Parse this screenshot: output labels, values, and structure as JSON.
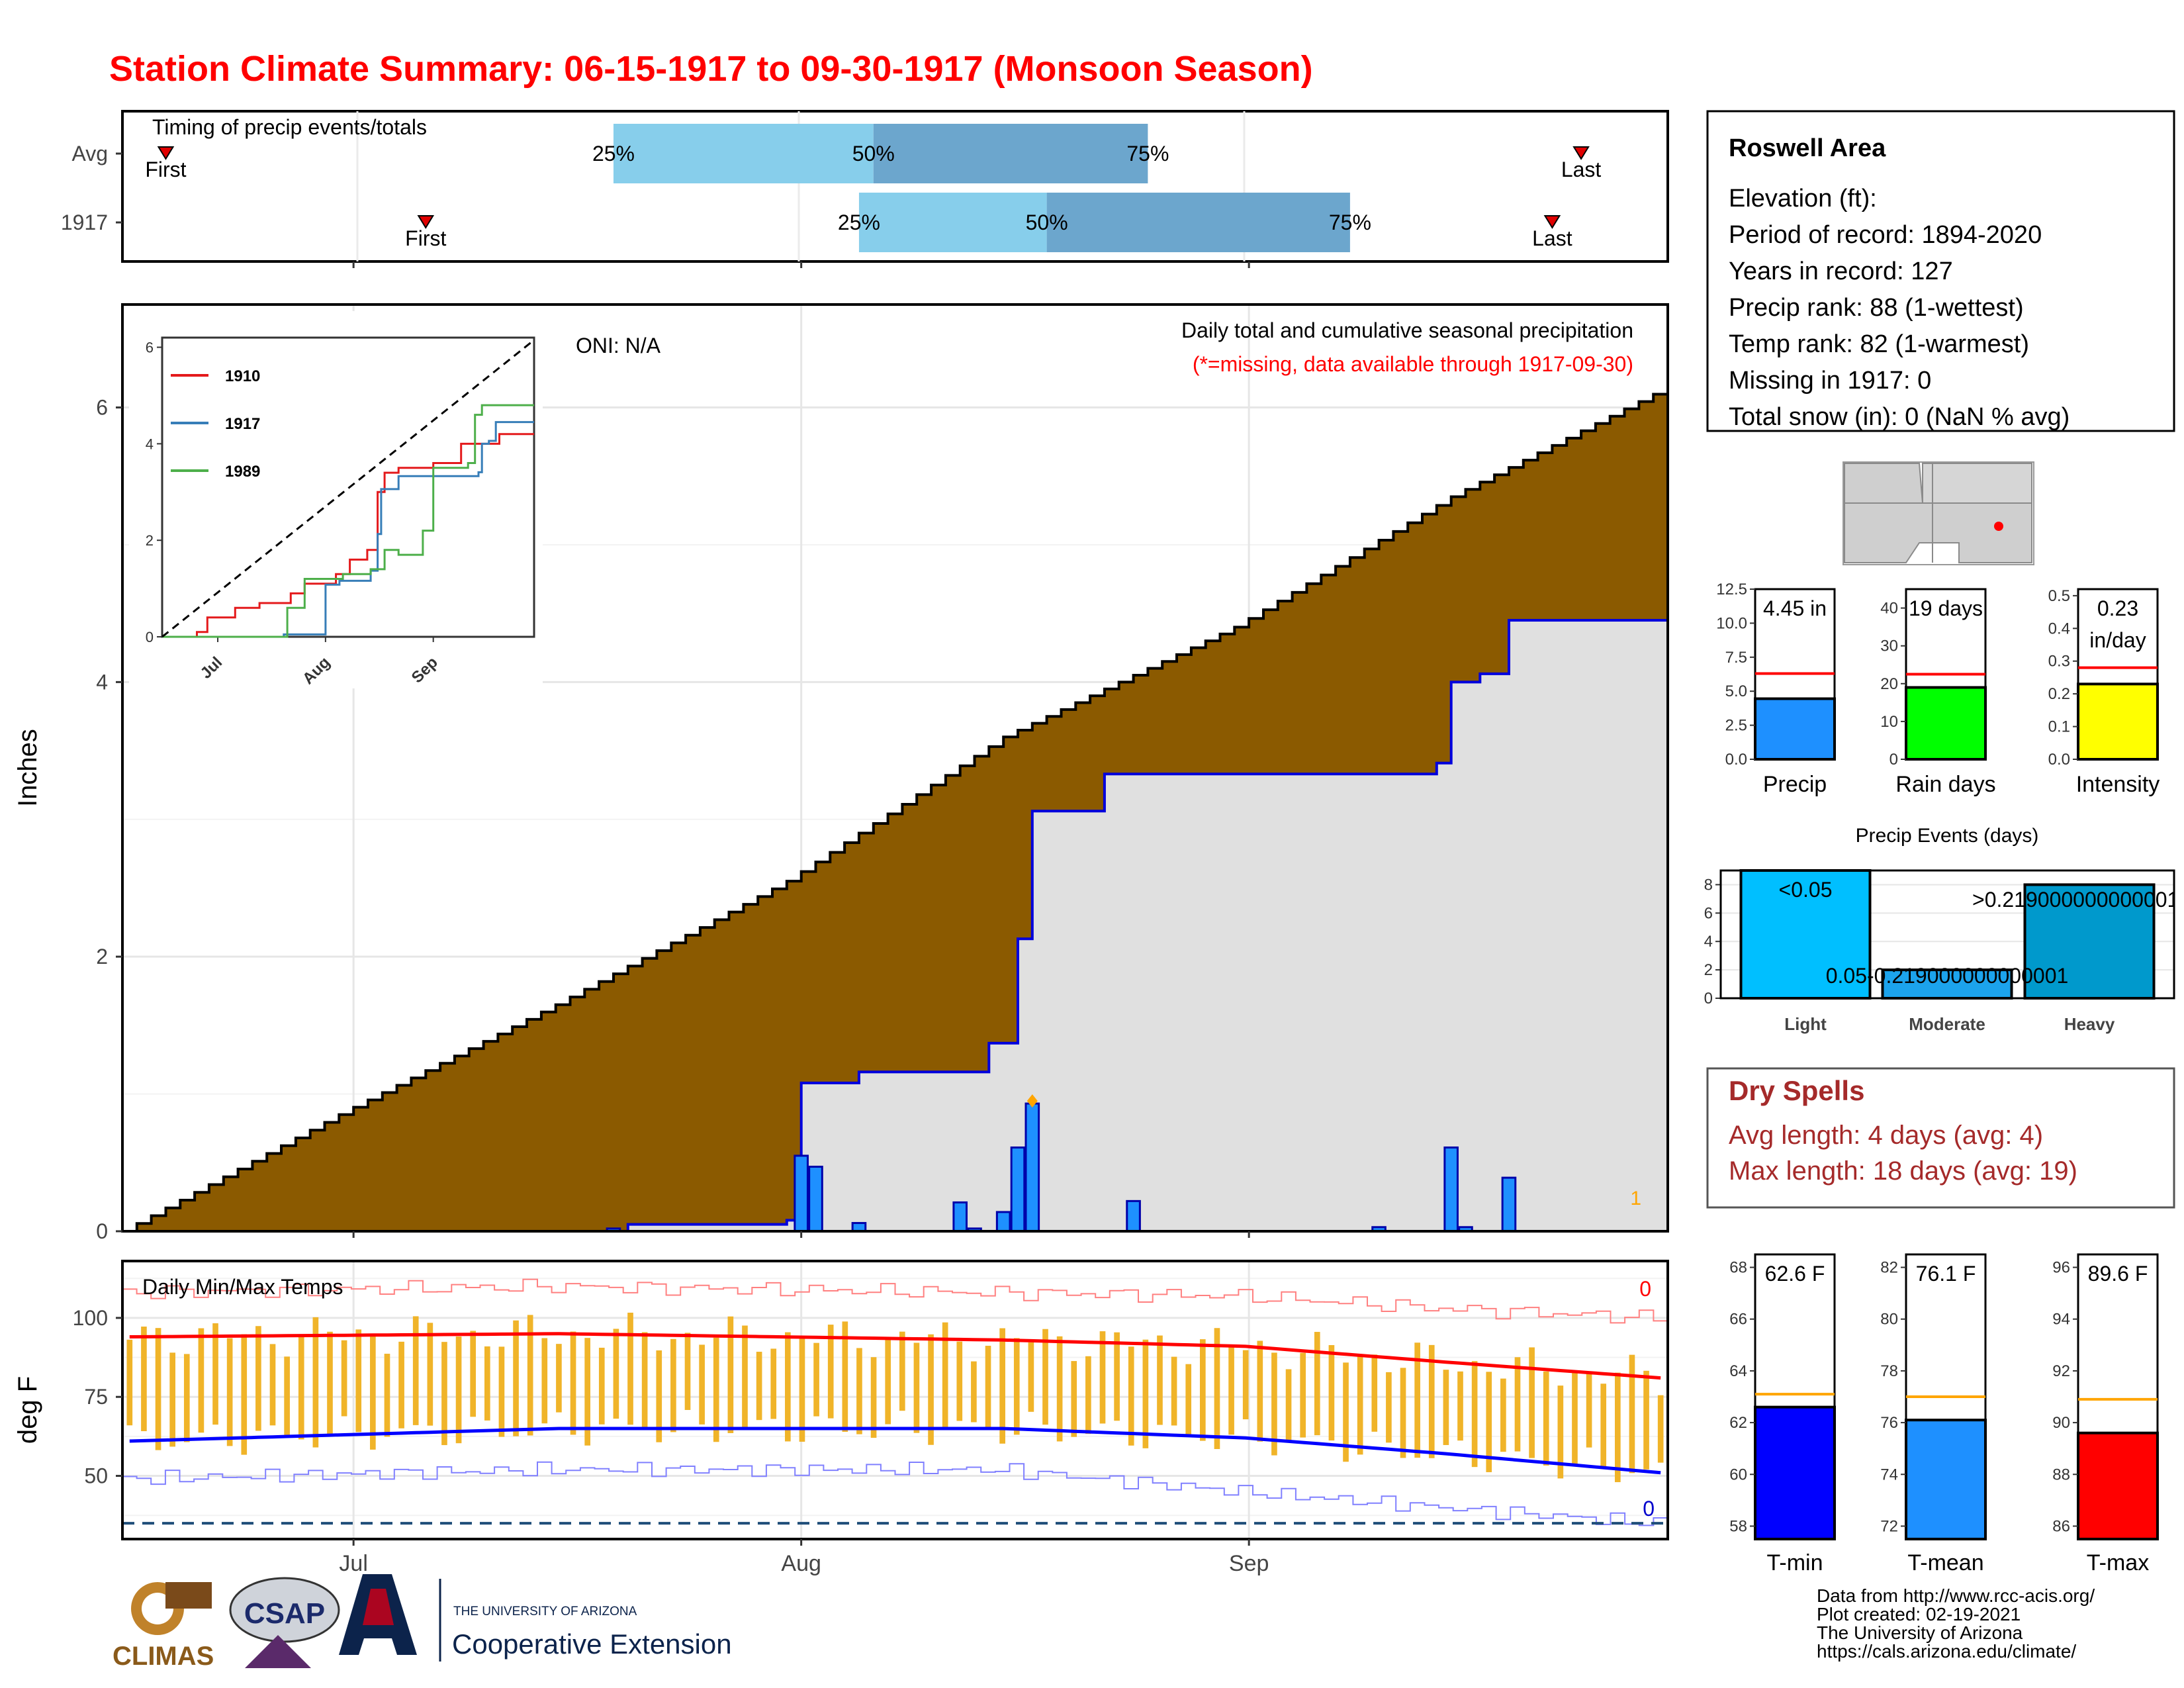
{
  "title": "Station Climate Summary: 06-15-1917 to 09-30-1917 (Monsoon Season)",
  "colors": {
    "title": "#ff0000",
    "cumulative_avg_fill": "#8b5a00",
    "cumulative_year_fill": "#e0e0e0",
    "daily_bar": "#1e90ff",
    "quartile_light": "#87ceeb",
    "quartile_dark": "#6ca6cd",
    "tmax_line": "#ff0000",
    "tmin_line": "#0000ff",
    "temp_range_bar": "#f0b429",
    "avg_ref_line": "#ff0000",
    "temp_ref_line": "#ffa500",
    "dry_spells_text": "#a52a2a"
  },
  "timing": {
    "label": "Timing of precip events/totals",
    "rows": [
      {
        "name": "Avg",
        "first_label": "First",
        "last_label": "Last",
        "first_date": "06-18",
        "last_date": "09-24",
        "q25": "07-19",
        "q50": "08-06",
        "q75": "08-25"
      },
      {
        "name": "1917",
        "first_label": "First",
        "last_label": "Last",
        "first_date": "07-06",
        "last_date": "09-22",
        "q25": "08-05",
        "q50": "08-18",
        "q75": "09-08"
      }
    ],
    "q25_label": "25%",
    "q50_label": "50%",
    "q75_label": "75%"
  },
  "main": {
    "ylabel": "Inches",
    "oni": "ONI: N/A",
    "subtitle": "Daily total and cumulative seasonal precipitation",
    "note": "(*=missing, data available through 1917-09-30)",
    "corner_count": "1",
    "x_ticks": [
      "Jul",
      "Aug",
      "Sep"
    ]
  },
  "inset": {
    "legend": [
      {
        "name": "1910",
        "color": "#e41a1c"
      },
      {
        "name": "1917",
        "color": "#377eb8"
      },
      {
        "name": "1989",
        "color": "#4daf4a"
      }
    ],
    "x_ticks": [
      "Jul",
      "Aug",
      "Sep"
    ],
    "y_ticks": [
      "0",
      "2",
      "4",
      "6"
    ]
  },
  "temps": {
    "ylabel": "deg F",
    "label": "Daily Min/Max Temps",
    "missing_max": "0",
    "missing_min": "0",
    "y_ticks": [
      "50",
      "75",
      "100"
    ],
    "x_ticks": [
      "Jul",
      "Aug",
      "Sep"
    ]
  },
  "station": {
    "name": "Roswell Area",
    "lines": [
      "Elevation (ft):",
      "Period of record: 1894-2020",
      "Years in record: 127",
      "Precip rank: 88 (1-wettest)",
      "Temp rank: 82 (1-warmest)",
      "Missing in 1917: 0",
      "Total snow (in): 0 (NaN % avg)"
    ]
  },
  "mini_bars": [
    {
      "label": "Precip",
      "value_text": "4.45 in",
      "value": 4.45,
      "avg": 6.3,
      "max": 12.5,
      "ticks": [
        "0.0",
        "2.5",
        "5.0",
        "7.5",
        "10.0",
        "12.5"
      ],
      "color": "#1e90ff"
    },
    {
      "label": "Rain days",
      "value_text": "19 days",
      "value": 19,
      "avg": 22.5,
      "max": 45,
      "ticks": [
        "0",
        "10",
        "20",
        "30",
        "40"
      ],
      "color": "#00ff00"
    },
    {
      "label": "Intensity",
      "value_text": "0.23",
      "value_text2": "in/day",
      "value": 0.23,
      "avg": 0.28,
      "max": 0.52,
      "ticks": [
        "0.0",
        "0.1",
        "0.2",
        "0.3",
        "0.4",
        "0.5"
      ],
      "color": "#ffff00"
    }
  ],
  "events": {
    "title": "Precip Events (days)",
    "y_ticks": [
      "0",
      "2",
      "4",
      "6",
      "8"
    ],
    "bars": [
      {
        "label": "Light",
        "value": 9,
        "text": "<0.05",
        "color": "#00bfff"
      },
      {
        "label": "Moderate",
        "value": 2,
        "text": "0.05-0.219000000000001",
        "color": "#1ca3ec"
      },
      {
        "label": "Heavy",
        "value": 8,
        "text": ">0.219000000000001",
        "color": "#0099cc"
      }
    ]
  },
  "dry_spells": {
    "title": "Dry Spells",
    "avg_line": "Avg length: 4 days (avg: 4)",
    "max_line": "Max length: 18 days (avg: 19)"
  },
  "temp_bars": [
    {
      "label": "T-min",
      "value_text": "62.6 F",
      "value": 62.6,
      "avg": 63.1,
      "min": 57.5,
      "max": 68.5,
      "ticks": [
        "58",
        "60",
        "62",
        "64",
        "66",
        "68"
      ],
      "color": "#0000ff"
    },
    {
      "label": "T-mean",
      "value_text": "76.1 F",
      "value": 76.1,
      "avg": 77.0,
      "min": 71.5,
      "max": 82.5,
      "ticks": [
        "72",
        "74",
        "76",
        "78",
        "80",
        "82"
      ],
      "color": "#1e90ff"
    },
    {
      "label": "T-max",
      "value_text": "89.6 F",
      "value": 89.6,
      "avg": 90.9,
      "min": 85.5,
      "max": 96.5,
      "ticks": [
        "86",
        "88",
        "90",
        "92",
        "94",
        "96"
      ],
      "color": "#ff0000"
    }
  ],
  "credits": [
    "Data from http://www.rcc-acis.org/",
    "Plot created: 02-19-2021",
    "The University of Arizona",
    "https://cals.arizona.edu/climate/"
  ],
  "logos": {
    "climas": "CLIMAS",
    "csap": "CSAP",
    "ua_line1": "THE UNIVERSITY OF ARIZONA",
    "ua_line2": "Cooperative Extension"
  },
  "chart_data": [
    {
      "type": "area",
      "title": "Daily total and cumulative seasonal precipitation",
      "ylabel": "Inches",
      "ylim": [
        0,
        6.5
      ],
      "x_range": [
        "1917-06-15",
        "1917-09-30"
      ],
      "series": [
        {
          "name": "",
          "role": "average cumulative",
          "x": [
            "06-15",
            "06-30",
            "07-15",
            "07-31",
            "08-15",
            "08-31",
            "09-15",
            "09-30"
          ],
          "values": [
            0.0,
            0.85,
            1.65,
            2.55,
            3.6,
            4.4,
            5.35,
            6.15
          ]
        },
        {
          "name": "",
          "role": "1917 cumulative",
          "x": [
            "06-15",
            "07-20",
            "07-31",
            "08-01",
            "08-05",
            "08-14",
            "08-16",
            "08-17",
            "08-22",
            "09-14",
            "09-15",
            "09-17",
            "09-19",
            "09-30"
          ],
          "values": [
            0.0,
            0.05,
            0.08,
            1.08,
            1.16,
            1.37,
            2.13,
            3.06,
            3.33,
            3.41,
            4.0,
            4.06,
            4.45,
            4.45
          ]
        },
        {
          "name": "",
          "role": "1917 daily",
          "x": [
            "07-19",
            "08-01",
            "08-02",
            "08-05",
            "08-12",
            "08-13",
            "08-15",
            "08-16",
            "08-17",
            "08-24",
            "09-10",
            "09-15",
            "09-16",
            "09-19"
          ],
          "values": [
            0.02,
            0.55,
            0.47,
            0.06,
            0.21,
            0.02,
            0.14,
            0.61,
            0.93,
            0.22,
            0.03,
            0.61,
            0.03,
            0.39
          ]
        }
      ]
    },
    {
      "type": "line",
      "title": "",
      "ylim": [
        0,
        6.2
      ],
      "series": [
        {
          "name": "1910",
          "x": [
            "06-15",
            "06-25",
            "06-28",
            "07-06",
            "07-13",
            "07-19",
            "07-22",
            "07-26",
            "08-04",
            "08-08",
            "08-13",
            "08-16",
            "08-18",
            "08-22",
            "09-01",
            "09-09",
            "09-20",
            "09-30"
          ],
          "values": [
            0.0,
            0.1,
            0.4,
            0.6,
            0.7,
            0.7,
            0.9,
            1.1,
            1.3,
            1.6,
            1.8,
            3.0,
            3.4,
            3.5,
            3.6,
            4.0,
            4.2,
            4.2
          ]
        },
        {
          "name": "1917",
          "x": [
            "06-15",
            "07-20",
            "08-01",
            "08-05",
            "08-14",
            "08-16",
            "08-17",
            "08-22",
            "09-14",
            "09-15",
            "09-17",
            "09-19",
            "09-30"
          ],
          "values": [
            0.0,
            0.05,
            1.08,
            1.16,
            1.37,
            2.13,
            3.06,
            3.33,
            3.41,
            4.0,
            4.06,
            4.45,
            4.45
          ]
        },
        {
          "name": "1989",
          "x": [
            "06-15",
            "07-17",
            "07-21",
            "07-26",
            "08-06",
            "08-14",
            "08-18",
            "08-22",
            "08-29",
            "09-01",
            "09-11",
            "09-13",
            "09-15",
            "09-30"
          ],
          "values": [
            0.0,
            0.0,
            0.6,
            1.2,
            1.3,
            1.4,
            1.8,
            1.7,
            2.2,
            3.5,
            3.6,
            4.6,
            4.8,
            4.8
          ]
        },
        {
          "name": "",
          "role": "average",
          "x": [
            "06-15",
            "09-30"
          ],
          "values": [
            0.0,
            6.15
          ]
        }
      ]
    },
    {
      "type": "line",
      "title": "Daily Min/Max Temps",
      "ylabel": "deg F",
      "ylim": [
        30,
        118
      ],
      "series": [
        {
          "name": "",
          "role": "avg max",
          "x": [
            "06-15",
            "07-15",
            "08-15",
            "09-01",
            "09-15",
            "09-30"
          ],
          "values": [
            94,
            95,
            93,
            91,
            86,
            81
          ]
        },
        {
          "name": "",
          "role": "avg min",
          "x": [
            "06-15",
            "07-15",
            "08-15",
            "09-01",
            "09-15",
            "09-30"
          ],
          "values": [
            61,
            65,
            65,
            62,
            57,
            51
          ]
        },
        {
          "name": "",
          "role": "record max",
          "x": [
            "06-15",
            "07-15",
            "08-15",
            "09-01",
            "09-15",
            "09-30"
          ],
          "values": [
            108,
            110,
            108,
            107,
            103,
            100
          ]
        },
        {
          "name": "",
          "role": "record min",
          "x": [
            "06-15",
            "07-15",
            "08-15",
            "09-01",
            "09-15",
            "09-30"
          ],
          "values": [
            49,
            52,
            52,
            45,
            40,
            35
          ]
        }
      ],
      "reference_line": 35
    }
  ]
}
